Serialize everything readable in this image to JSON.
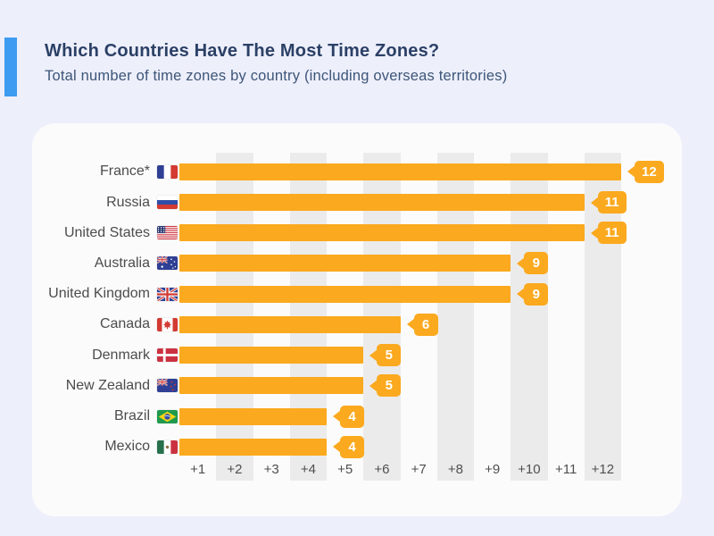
{
  "header": {
    "title": "Which Countries Have The Most Time Zones?",
    "subtitle": "Total number of time zones by country (including overseas territories)"
  },
  "colors": {
    "accent_blue": "#3D9BF0",
    "bar_orange": "#FBA91E",
    "band_gray": "#EBEBEB",
    "card_bg": "#FBFBFC",
    "page_bg": "#EDEFFB",
    "title_navy": "#2B4066"
  },
  "chart_data": {
    "type": "bar",
    "orientation": "horizontal",
    "title": "Which Countries Have The Most Time Zones?",
    "subtitle": "Total number of time zones by country (including overseas territories)",
    "xlim": [
      0,
      12
    ],
    "x_ticks": [
      "+1",
      "+2",
      "+3",
      "+4",
      "+5",
      "+6",
      "+7",
      "+8",
      "+9",
      "+10",
      "+11",
      "+12"
    ],
    "grid": "alternating vertical bands on even columns",
    "legend": "none",
    "categories": [
      "France*",
      "Russia",
      "United States",
      "Australia",
      "United Kingdom",
      "Canada",
      "Denmark",
      "New Zealand",
      "Brazil",
      "Mexico"
    ],
    "values": [
      12,
      11,
      11,
      9,
      9,
      6,
      5,
      5,
      4,
      4
    ],
    "rows": [
      {
        "country": "France*",
        "flag": "fr",
        "value": 12
      },
      {
        "country": "Russia",
        "flag": "ru",
        "value": 11
      },
      {
        "country": "United States",
        "flag": "us",
        "value": 11
      },
      {
        "country": "Australia",
        "flag": "au",
        "value": 9
      },
      {
        "country": "United Kingdom",
        "flag": "gb",
        "value": 9
      },
      {
        "country": "Canada",
        "flag": "ca",
        "value": 6
      },
      {
        "country": "Denmark",
        "flag": "dk",
        "value": 5
      },
      {
        "country": "New Zealand",
        "flag": "nz",
        "value": 5
      },
      {
        "country": "Brazil",
        "flag": "br",
        "value": 4
      },
      {
        "country": "Mexico",
        "flag": "mx",
        "value": 4
      }
    ]
  }
}
